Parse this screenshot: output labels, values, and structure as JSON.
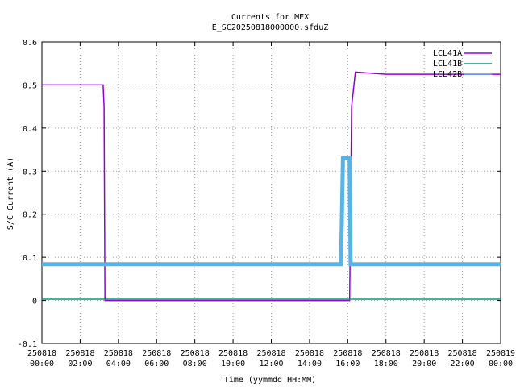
{
  "chart_data": {
    "type": "line",
    "title": "Currents for MEX",
    "subtitle": "E_SC20250818000000.sfduZ",
    "xlabel": "Time (yymmdd HH:MM)",
    "ylabel": "S/C Current (A)",
    "xlim_hours": [
      0,
      24
    ],
    "ylim": [
      -0.1,
      0.6
    ],
    "grid": true,
    "legend_position": "top-right",
    "x_ticks": [
      {
        "hours": 0,
        "date": "250818",
        "time": "00:00"
      },
      {
        "hours": 2,
        "date": "250818",
        "time": "02:00"
      },
      {
        "hours": 4,
        "date": "250818",
        "time": "04:00"
      },
      {
        "hours": 6,
        "date": "250818",
        "time": "06:00"
      },
      {
        "hours": 8,
        "date": "250818",
        "time": "08:00"
      },
      {
        "hours": 10,
        "date": "250818",
        "time": "10:00"
      },
      {
        "hours": 12,
        "date": "250818",
        "time": "12:00"
      },
      {
        "hours": 14,
        "date": "250818",
        "time": "14:00"
      },
      {
        "hours": 16,
        "date": "250818",
        "time": "16:00"
      },
      {
        "hours": 18,
        "date": "250818",
        "time": "18:00"
      },
      {
        "hours": 20,
        "date": "250818",
        "time": "20:00"
      },
      {
        "hours": 22,
        "date": "250818",
        "time": "22:00"
      },
      {
        "hours": 24,
        "date": "250819",
        "time": "00:00"
      }
    ],
    "y_ticks": [
      -0.1,
      0,
      0.1,
      0.2,
      0.3,
      0.4,
      0.5,
      0.6
    ],
    "series": [
      {
        "name": "LCL41A",
        "color": "#9400d3",
        "points": [
          [
            0,
            0.5
          ],
          [
            3.2,
            0.5
          ],
          [
            3.25,
            0.45
          ],
          [
            3.3,
            0.0
          ],
          [
            16.1,
            0.0
          ],
          [
            16.2,
            0.45
          ],
          [
            16.4,
            0.53
          ],
          [
            18,
            0.525
          ],
          [
            24,
            0.525
          ]
        ]
      },
      {
        "name": "LCL41B",
        "color": "#009e73",
        "points": [
          [
            0,
            0.003
          ],
          [
            24,
            0.003
          ]
        ]
      },
      {
        "name": "LCL42B",
        "color": "#56b4e9",
        "points": [
          [
            0,
            0.084
          ],
          [
            15.65,
            0.084
          ],
          [
            15.75,
            0.33
          ],
          [
            16.1,
            0.33
          ],
          [
            16.15,
            0.084
          ],
          [
            24,
            0.084
          ]
        ]
      }
    ]
  }
}
